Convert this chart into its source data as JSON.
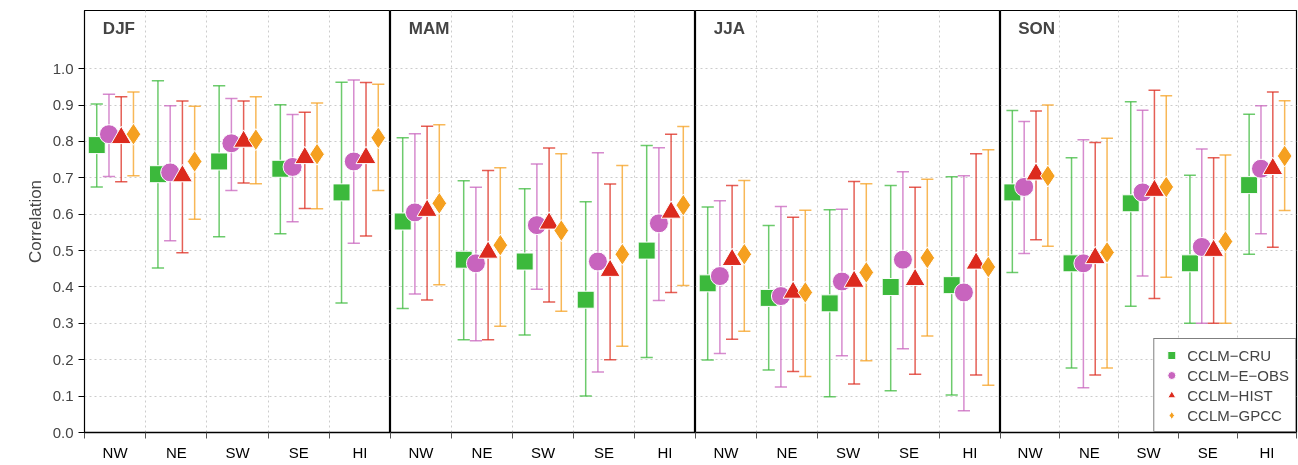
{
  "chart_data": [
    {
      "type": "scatter",
      "title": "DJF",
      "ylabel": "Correlation",
      "categories": [
        "NW",
        "NE",
        "SW",
        "SE",
        "HI"
      ],
      "ylim": [
        0,
        1.16
      ],
      "yticks": [
        {
          "value": 0,
          "label": "0.0"
        },
        0.1,
        0.2,
        0.3,
        0.4,
        0.5,
        0.6,
        0.7,
        0.8,
        0.9,
        {
          "value": 1,
          "label": "1.0"
        }
      ],
      "grid": true,
      "legend": false,
      "series": [
        {
          "color": "#3cb93c",
          "marker": "square",
          "values": [
            0.79,
            0.71,
            0.745,
            0.725,
            0.66
          ],
          "errors": [
            [
              0.675,
              0.903
            ],
            [
              0.452,
              0.967
            ],
            [
              0.538,
              0.953
            ],
            [
              0.546,
              0.901
            ],
            [
              0.356,
              0.963
            ]
          ]
        },
        {
          "color": "#c864be",
          "marker": "circle",
          "values": [
            0.82,
            0.715,
            0.795,
            0.73,
            0.745
          ],
          "errors": [
            [
              0.704,
              0.93
            ],
            [
              0.527,
              0.898
            ],
            [
              0.665,
              0.918
            ],
            [
              0.579,
              0.874
            ],
            [
              0.52,
              0.969
            ]
          ]
        },
        {
          "color": "#dc2a1e",
          "marker": "triangle",
          "values": [
            0.81,
            0.705,
            0.8,
            0.755,
            0.755
          ],
          "errors": [
            [
              0.689,
              0.923
            ],
            [
              0.494,
              0.911
            ],
            [
              0.686,
              0.911
            ],
            [
              0.616,
              0.88
            ],
            [
              0.54,
              0.962
            ]
          ]
        },
        {
          "color": "#f5a020",
          "marker": "diamond",
          "values": [
            0.82,
            0.745,
            0.805,
            0.765,
            0.81
          ],
          "errors": [
            [
              0.706,
              0.936
            ],
            [
              0.586,
              0.897
            ],
            [
              0.684,
              0.923
            ],
            [
              0.615,
              0.906
            ],
            [
              0.665,
              0.957
            ]
          ]
        }
      ]
    },
    {
      "type": "scatter",
      "title": "MAM",
      "categories": [
        "NW",
        "NE",
        "SW",
        "SE",
        "HI"
      ],
      "ylim": [
        0,
        1.16
      ],
      "yticks": [
        0.1,
        0.2,
        0.3,
        0.4,
        0.5,
        0.6,
        0.7,
        0.8,
        0.9,
        1
      ],
      "grid": true,
      "legend": false,
      "tick_labels": "x",
      "series": [
        {
          "color": "#3cb93c",
          "marker": "square",
          "values": [
            0.58,
            0.475,
            0.47,
            0.365,
            0.5
          ],
          "errors": [
            [
              0.341,
              0.81
            ],
            [
              0.255,
              0.692
            ],
            [
              0.268,
              0.67
            ],
            [
              0.1,
              0.634
            ],
            [
              0.206,
              0.789
            ]
          ]
        },
        {
          "color": "#c864be",
          "marker": "circle",
          "values": [
            0.605,
            0.465,
            0.57,
            0.47,
            0.575
          ],
          "errors": [
            [
              0.381,
              0.821
            ],
            [
              0.252,
              0.674
            ],
            [
              0.394,
              0.738
            ],
            [
              0.166,
              0.769
            ],
            [
              0.363,
              0.783
            ]
          ]
        },
        {
          "color": "#dc2a1e",
          "marker": "triangle",
          "values": [
            0.61,
            0.495,
            0.575,
            0.445,
            0.605
          ],
          "errors": [
            [
              0.364,
              0.842
            ],
            [
              0.255,
              0.72
            ],
            [
              0.359,
              0.782
            ],
            [
              0.2,
              0.683
            ],
            [
              0.385,
              0.82
            ]
          ]
        },
        {
          "color": "#f5a020",
          "marker": "diamond",
          "values": [
            0.63,
            0.515,
            0.555,
            0.49,
            0.625
          ],
          "errors": [
            [
              0.406,
              0.846
            ],
            [
              0.292,
              0.728
            ],
            [
              0.333,
              0.766
            ],
            [
              0.237,
              0.734
            ],
            [
              0.404,
              0.841
            ]
          ]
        }
      ]
    },
    {
      "type": "scatter",
      "title": "JJA",
      "categories": [
        "NW",
        "NE",
        "SW",
        "SE",
        "HI"
      ],
      "ylim": [
        0,
        1.16
      ],
      "yticks": [
        0.1,
        0.2,
        0.3,
        0.4,
        0.5,
        0.6,
        0.7,
        0.8,
        0.9,
        1
      ],
      "grid": true,
      "legend": false,
      "tick_labels": "x",
      "series": [
        {
          "color": "#3cb93c",
          "marker": "square",
          "values": [
            0.41,
            0.37,
            0.355,
            0.4,
            0.405
          ],
          "errors": [
            [
              0.199,
              0.62
            ],
            [
              0.172,
              0.569
            ],
            [
              0.098,
              0.612
            ],
            [
              0.115,
              0.679
            ],
            [
              0.103,
              0.703
            ]
          ]
        },
        {
          "color": "#c864be",
          "marker": "circle",
          "values": [
            0.43,
            0.375,
            0.415,
            0.475,
            0.385
          ],
          "errors": [
            [
              0.217,
              0.637
            ],
            [
              0.125,
              0.621
            ],
            [
              0.211,
              0.614
            ],
            [
              0.23,
              0.717
            ],
            [
              0.06,
              0.706
            ]
          ]
        },
        {
          "color": "#dc2a1e",
          "marker": "triangle",
          "values": [
            0.475,
            0.385,
            0.415,
            0.42,
            0.465
          ],
          "errors": [
            [
              0.256,
              0.679
            ],
            [
              0.168,
              0.592
            ],
            [
              0.133,
              0.69
            ],
            [
              0.16,
              0.674
            ],
            [
              0.158,
              0.766
            ]
          ]
        },
        {
          "color": "#f5a020",
          "marker": "diamond",
          "values": [
            0.49,
            0.385,
            0.44,
            0.48,
            0.455
          ],
          "errors": [
            [
              0.278,
              0.693
            ],
            [
              0.154,
              0.611
            ],
            [
              0.197,
              0.684
            ],
            [
              0.265,
              0.696
            ],
            [
              0.13,
              0.777
            ]
          ]
        }
      ]
    },
    {
      "type": "scatter",
      "title": "SON",
      "categories": [
        "NW",
        "NE",
        "SW",
        "SE",
        "HI"
      ],
      "ylim": [
        0,
        1.16
      ],
      "yticks": [
        0.1,
        0.2,
        0.3,
        0.4,
        0.5,
        0.6,
        0.7,
        0.8,
        0.9,
        1
      ],
      "grid": true,
      "legend": "bottom right",
      "tick_labels": "x",
      "series": [
        {
          "name": "CCLM−CRU",
          "color": "#3cb93c",
          "marker": "square",
          "values": [
            0.66,
            0.465,
            0.63,
            0.465,
            0.68
          ],
          "errors": [
            [
              0.44,
              0.885
            ],
            [
              0.177,
              0.755
            ],
            [
              0.347,
              0.909
            ],
            [
              0.3,
              0.707
            ],
            [
              0.49,
              0.875
            ]
          ]
        },
        {
          "name": "CCLM−E−OBS",
          "color": "#c864be",
          "marker": "circle",
          "values": [
            0.675,
            0.465,
            0.66,
            0.51,
            0.725
          ],
          "errors": [
            [
              0.492,
              0.855
            ],
            [
              0.123,
              0.805
            ],
            [
              0.43,
              0.886
            ],
            [
              0.3,
              0.779
            ],
            [
              0.546,
              0.898
            ]
          ]
        },
        {
          "name": "CCLM−HIST",
          "color": "#dc2a1e",
          "marker": "triangle",
          "values": [
            0.71,
            0.48,
            0.665,
            0.5,
            0.725
          ],
          "errors": [
            [
              0.53,
              0.884
            ],
            [
              0.158,
              0.797
            ],
            [
              0.368,
              0.941
            ],
            [
              0.3,
              0.755
            ],
            [
              0.509,
              0.936
            ]
          ]
        },
        {
          "name": "CCLM−GPCC",
          "color": "#f5a020",
          "marker": "diamond",
          "values": [
            0.705,
            0.495,
            0.675,
            0.525,
            0.76
          ],
          "errors": [
            [
              0.512,
              0.9
            ],
            [
              0.177,
              0.809
            ],
            [
              0.427,
              0.926
            ],
            [
              0.3,
              0.763
            ],
            [
              0.61,
              0.912
            ]
          ]
        }
      ]
    }
  ]
}
